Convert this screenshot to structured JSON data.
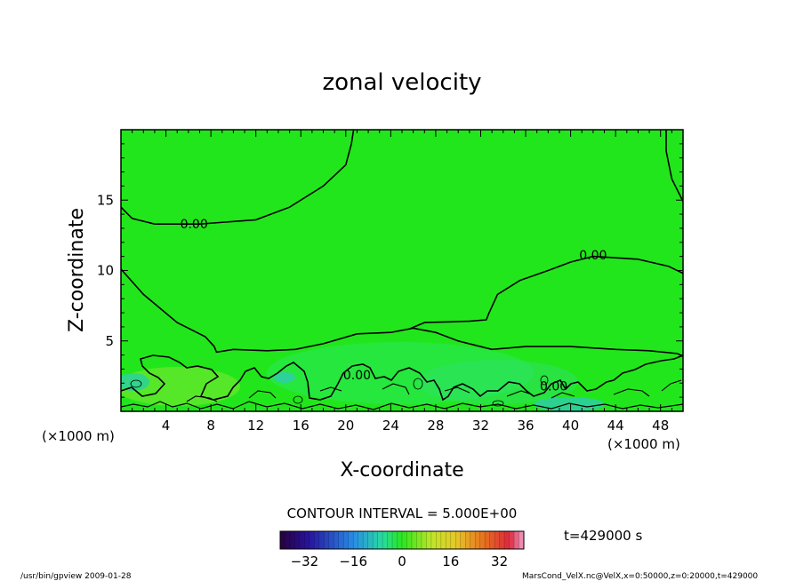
{
  "chart_data": {
    "type": "contour",
    "title": "zonal velocity",
    "xlabel": "X-coordinate",
    "ylabel": "Z-coordinate",
    "x_unit": "(×1000 m)",
    "y_unit": "(×1000 m)",
    "xlim": [
      0,
      50
    ],
    "ylim": [
      0,
      20
    ],
    "xticks": [
      4,
      8,
      12,
      16,
      20,
      24,
      28,
      32,
      36,
      40,
      44,
      48
    ],
    "yticks": [
      5,
      10,
      15
    ],
    "contour_labels": [
      {
        "text": "0.00",
        "x": 6.5,
        "z": 13.3
      },
      {
        "text": "0.00",
        "x": 42,
        "z": 11.1
      },
      {
        "text": "0.00",
        "x": 21,
        "z": 2.6
      },
      {
        "text": "0.00",
        "x": 38.5,
        "z": 1.8
      }
    ],
    "contour_interval_text": "CONTOUR INTERVAL = 5.000E+00",
    "time_label": "t=429000 s",
    "colorbar": {
      "min": -40,
      "max": 40,
      "ticks": [
        -32,
        -16,
        0,
        16,
        32
      ]
    },
    "zero_contours": [
      [
        [
          0,
          14.5
        ],
        [
          1,
          13.7
        ],
        [
          3,
          13.3
        ],
        [
          7,
          13.3
        ],
        [
          12,
          13.6
        ],
        [
          15,
          14.5
        ],
        [
          18,
          16
        ],
        [
          20,
          17.5
        ],
        [
          20.5,
          19
        ],
        [
          20.7,
          20
        ]
      ],
      [
        [
          0,
          10.1
        ],
        [
          2,
          8.3
        ],
        [
          5,
          6.3
        ],
        [
          7.5,
          5.3
        ],
        [
          8.3,
          4.6
        ],
        [
          8.5,
          4.2
        ],
        [
          10,
          4.4
        ],
        [
          13,
          4.3
        ],
        [
          15.5,
          4.4
        ],
        [
          18,
          4.8
        ],
        [
          21,
          5.5
        ],
        [
          24,
          5.6
        ],
        [
          26,
          5.9
        ],
        [
          28,
          5.6
        ],
        [
          30,
          5.0
        ],
        [
          33,
          4.4
        ],
        [
          36,
          4.6
        ],
        [
          40,
          4.6
        ],
        [
          44,
          4.4
        ],
        [
          47,
          4.3
        ],
        [
          49.5,
          4.1
        ],
        [
          50,
          3.9
        ]
      ],
      [
        [
          50,
          14.9
        ],
        [
          49,
          16.5
        ],
        [
          48.5,
          18.5
        ],
        [
          48.5,
          20
        ]
      ],
      [
        [
          25.8,
          5.9
        ],
        [
          27,
          6.3
        ],
        [
          31,
          6.4
        ],
        [
          32.5,
          6.5
        ],
        [
          32.7,
          6.9
        ],
        [
          33.5,
          8.3
        ],
        [
          35.5,
          9.3
        ],
        [
          38,
          10.0
        ],
        [
          40,
          10.6
        ],
        [
          42,
          11.0
        ],
        [
          46,
          10.8
        ],
        [
          48.7,
          10.3
        ],
        [
          50,
          9.8
        ]
      ]
    ]
  },
  "footer": {
    "left": "/usr/bin/gpview   2009-01-28",
    "right": "MarsCond_VelX.nc@VelX,x=0:50000,z=0:20000,t=429000"
  }
}
